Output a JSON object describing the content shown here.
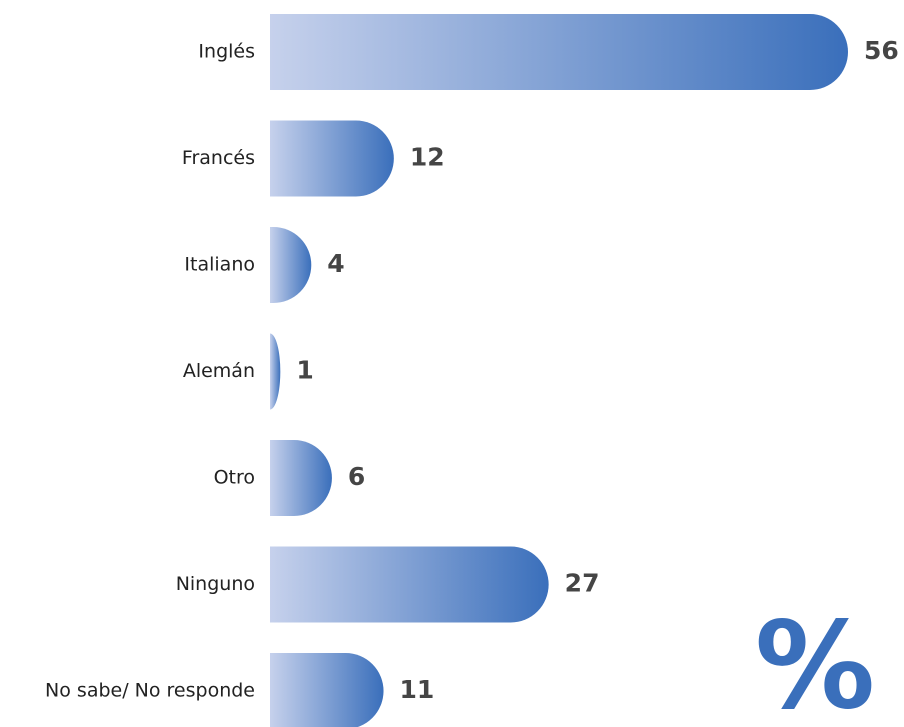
{
  "chart_data": {
    "type": "bar",
    "orientation": "horizontal",
    "categories": [
      "Inglés",
      "Francés",
      "Italiano",
      "Alemán",
      "Otro",
      "Ninguno",
      "No sabe/ No responde"
    ],
    "values": [
      56,
      12,
      4,
      1,
      6,
      27,
      11
    ],
    "unit": "%",
    "xlim": [
      0,
      56
    ],
    "color": "#3a6fbb"
  }
}
